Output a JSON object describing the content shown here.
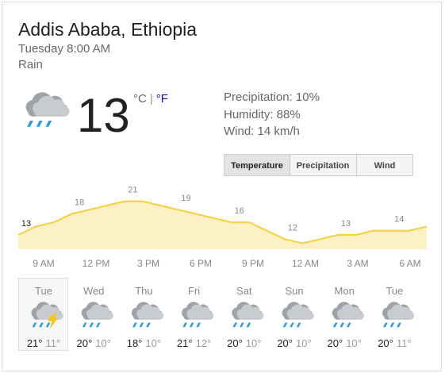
{
  "location": "Addis Ababa, Ethiopia",
  "datetime": "Tuesday 8:00 AM",
  "condition": "Rain",
  "current": {
    "temp": "13",
    "unit_c": "°C",
    "separator": "|",
    "unit_f": "°F"
  },
  "details": [
    "Precipitation: 10%",
    "Humidity: 88%",
    "Wind: 14 km/h"
  ],
  "tabs": [
    "Temperature",
    "Precipitation",
    "Wind"
  ],
  "hourly": {
    "temps": [
      13,
      15,
      16,
      18,
      19,
      20,
      21,
      21,
      20,
      19,
      18,
      17,
      16,
      16,
      14,
      12,
      11,
      12,
      13,
      13,
      14,
      14,
      14,
      15
    ],
    "times": [
      "9 AM",
      "12 PM",
      "3 PM",
      "6 PM",
      "9 PM",
      "12 AM",
      "3 AM",
      "6 AM"
    ]
  },
  "forecast": [
    {
      "day": "Tue",
      "high": "21°",
      "low": "11°"
    },
    {
      "day": "Wed",
      "high": "20°",
      "low": "10°"
    },
    {
      "day": "Thu",
      "high": "18°",
      "low": "10°"
    },
    {
      "day": "Fri",
      "high": "21°",
      "low": "12°"
    },
    {
      "day": "Sat",
      "high": "20°",
      "low": "10°"
    },
    {
      "day": "Sun",
      "high": "20°",
      "low": "10°"
    },
    {
      "day": "Mon",
      "high": "20°",
      "low": "10°"
    },
    {
      "day": "Tue",
      "high": "20°",
      "low": "11°"
    }
  ]
}
